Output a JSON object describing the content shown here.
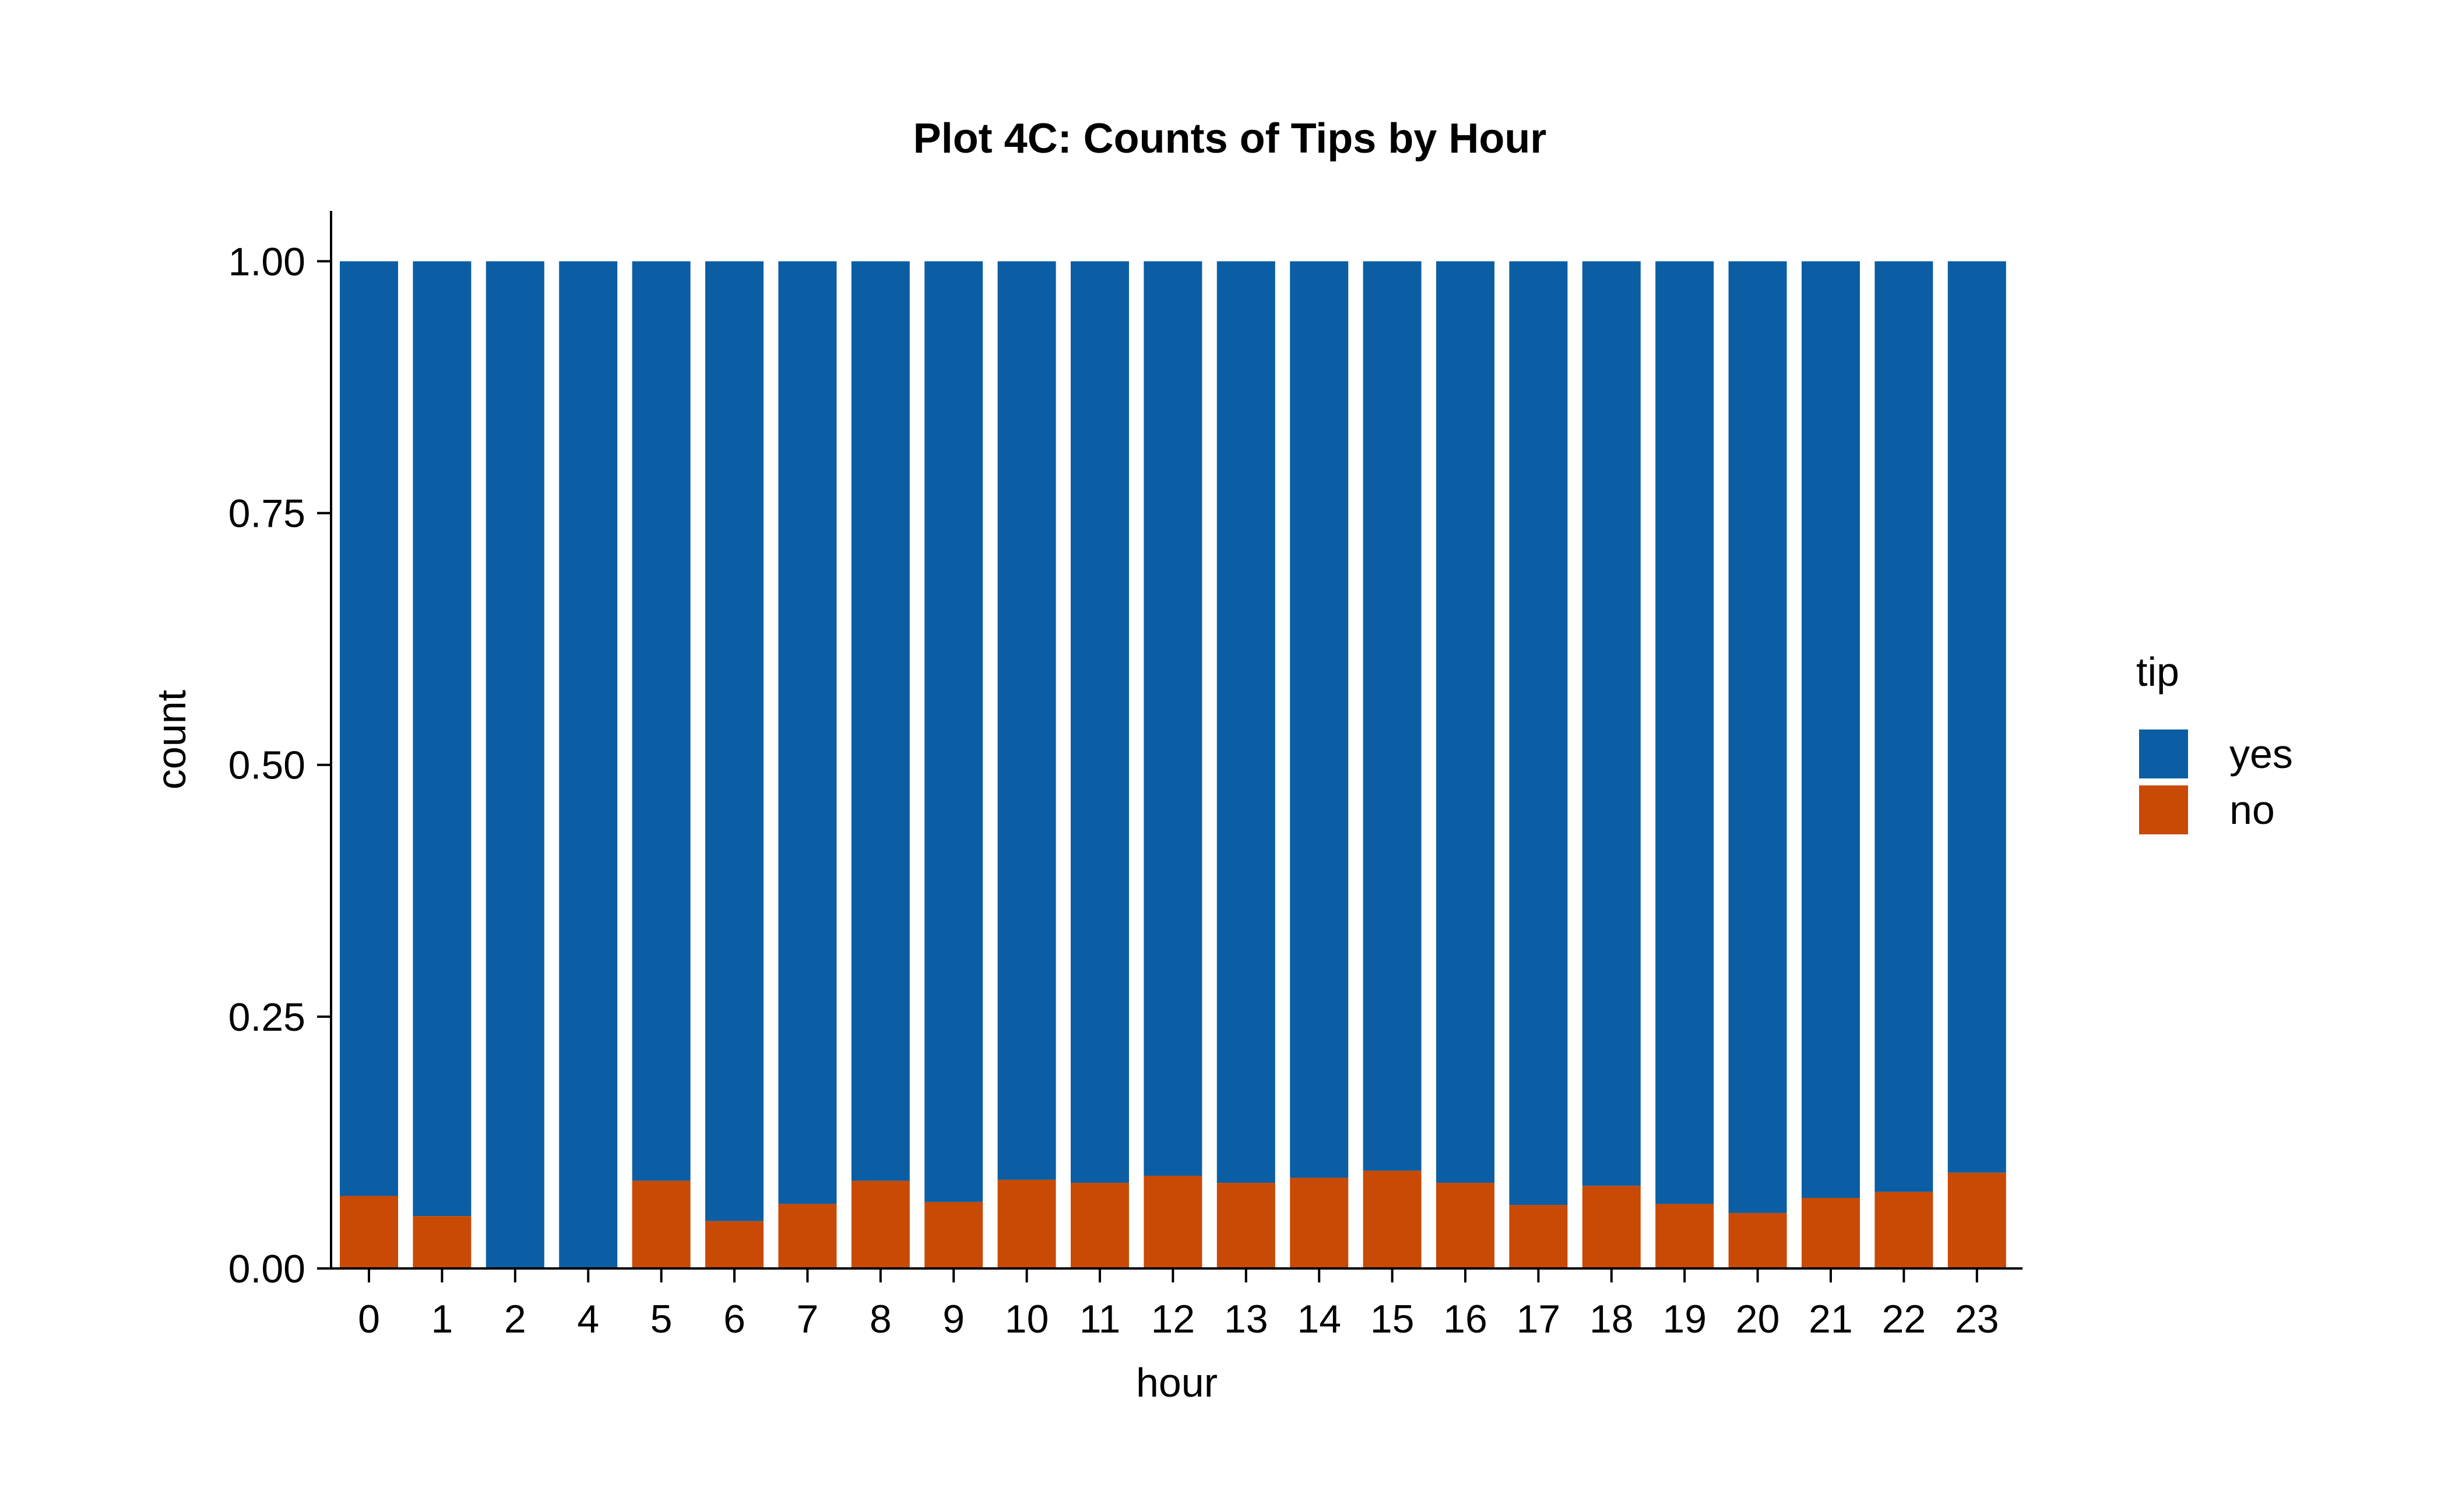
{
  "chart_data": {
    "type": "bar",
    "stacked": true,
    "title": "Plot 4C: Counts of Tips by Hour",
    "xlabel": "hour",
    "ylabel": "count",
    "ylim": [
      0,
      1.05
    ],
    "yticks": [
      0,
      0.25,
      0.5,
      0.75,
      1.0
    ],
    "ytick_labels": [
      "0.00",
      "0.25",
      "0.50",
      "0.75",
      "1.00"
    ],
    "categories": [
      "0",
      "1",
      "2",
      "4",
      "5",
      "6",
      "7",
      "8",
      "9",
      "10",
      "11",
      "12",
      "13",
      "14",
      "15",
      "16",
      "17",
      "18",
      "19",
      "20",
      "21",
      "22",
      "23"
    ],
    "legend": {
      "title": "tip",
      "position": "right"
    },
    "grid": false,
    "series": [
      {
        "name": "no",
        "color": "#C84A05",
        "values": [
          0.072,
          0.052,
          0.0,
          0.0,
          0.087,
          0.047,
          0.064,
          0.087,
          0.066,
          0.088,
          0.085,
          0.092,
          0.085,
          0.09,
          0.097,
          0.085,
          0.063,
          0.082,
          0.064,
          0.055,
          0.07,
          0.076,
          0.095
        ]
      },
      {
        "name": "yes",
        "color": "#0B5EA3",
        "values": [
          0.928,
          0.948,
          1.0,
          1.0,
          0.913,
          0.953,
          0.936,
          0.913,
          0.934,
          0.912,
          0.915,
          0.908,
          0.915,
          0.91,
          0.903,
          0.915,
          0.937,
          0.918,
          0.936,
          0.945,
          0.93,
          0.924,
          0.905
        ]
      }
    ]
  }
}
